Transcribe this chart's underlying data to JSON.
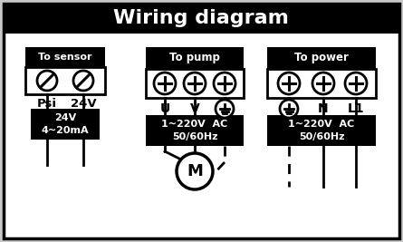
{
  "title": "Wiring diagram",
  "title_bg": "#000000",
  "title_fg": "#ffffff",
  "bg_color": "#ffffff",
  "border_color": "#000000",
  "outer_bg": "#c8c8c8",
  "sensor_box_label": "To sensor",
  "sensor_label1": "Psi",
  "sensor_label2": "24V",
  "sensor_box2_text": "24V\n4~20mA",
  "pump_box_label": "To pump",
  "pump_labels": [
    "U",
    "V",
    ""
  ],
  "pump_box_text": "1~220V  AC\n50/60Hz",
  "motor_label": "M",
  "power_box_label": "To power",
  "power_labels": [
    "",
    "N",
    "L1"
  ],
  "power_box_text": "1~220V  AC\n50/60Hz"
}
